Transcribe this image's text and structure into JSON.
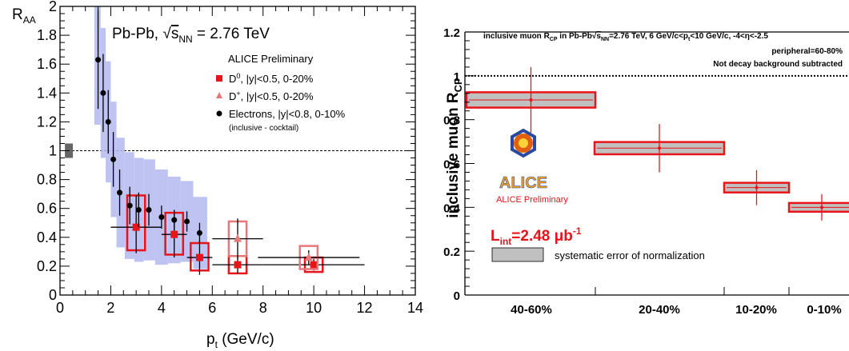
{
  "chart_data": [
    {
      "type": "scatter",
      "title": "",
      "xlabel": "p",
      "xlabel_sub": "t",
      "xlabel_unit": " (GeV/c)",
      "ylabel": "R",
      "ylabel_sub": "AA",
      "xlim": [
        0,
        14
      ],
      "ylim": [
        0,
        2
      ],
      "xticks": [
        "0",
        "2",
        "4",
        "6",
        "8",
        "10",
        "12",
        "14"
      ],
      "yticks": [
        "0",
        "0.2",
        "0.4",
        "0.6",
        "0.8",
        "1",
        "1.2",
        "1.4",
        "1.6",
        "1.8",
        "2"
      ],
      "reference_line": 1,
      "normalization_box": {
        "x": 0.35,
        "y": 1.0,
        "half_height": 0.05,
        "color": "#666666"
      },
      "system_label_prefix": "Pb-Pb, ",
      "system_label_sqrt": "√",
      "system_label_s": "s",
      "system_label_sub": "NN",
      "system_label_suffix": " = 2.76 TeV",
      "preliminary_label": "ALICE Preliminary",
      "legend_placement": "top-right",
      "series": [
        {
          "name": "D",
          "name_sup": "0",
          "name_suffix": ", |y|<0.5, 0-20%",
          "marker": "square",
          "color": "#e8141a",
          "points": [
            {
              "x": 3.0,
              "y": 0.47,
              "xerr": 1.0,
              "yerr_lo": 0.18,
              "yerr_hi": 0.22,
              "sys_lo": 0.16,
              "sys_hi": 0.22
            },
            {
              "x": 4.5,
              "y": 0.42,
              "xerr": 0.5,
              "yerr_lo": 0.16,
              "yerr_hi": 0.16,
              "sys_lo": 0.14,
              "sys_hi": 0.15
            },
            {
              "x": 5.5,
              "y": 0.26,
              "xerr": 0.5,
              "yerr_lo": 0.12,
              "yerr_hi": 0.12,
              "sys_lo": 0.09,
              "sys_hi": 0.1
            },
            {
              "x": 7.0,
              "y": 0.21,
              "xerr": 1.0,
              "yerr_lo": 0.06,
              "yerr_hi": 0.06,
              "sys_lo": 0.06,
              "sys_hi": 0.06
            },
            {
              "x": 10.0,
              "y": 0.21,
              "xerr": 2.0,
              "yerr_lo": 0.04,
              "yerr_hi": 0.04,
              "sys_lo": 0.05,
              "sys_hi": 0.05
            }
          ]
        },
        {
          "name": "D",
          "name_sup": "+",
          "name_suffix": ", |y|<0.5, 0-20%",
          "marker": "triangle",
          "color": "#e6787a",
          "points": [
            {
              "x": 7.0,
              "y": 0.39,
              "xerr": 1.0,
              "yerr_lo": 0.14,
              "yerr_hi": 0.14,
              "sys_lo": 0.12,
              "sys_hi": 0.12
            },
            {
              "x": 9.8,
              "y": 0.26,
              "xerr": 2.0,
              "yerr_lo": 0.05,
              "yerr_hi": 0.05,
              "sys_lo": 0.08,
              "sys_hi": 0.08
            }
          ]
        },
        {
          "name": "Electrons, |y|<0.8, 0-10%",
          "note": "(inclusive - cocktail)",
          "marker": "circle",
          "color": "#000000",
          "band_color": "#b3b8f0",
          "points": [
            {
              "x": 1.5,
              "y": 1.63,
              "yerr": 0.34,
              "sys": 0.45
            },
            {
              "x": 1.7,
              "y": 1.4,
              "yerr": 0.27,
              "sys": 0.45
            },
            {
              "x": 1.9,
              "y": 1.2,
              "yerr": 0.22,
              "sys": 0.42
            },
            {
              "x": 2.1,
              "y": 0.94,
              "yerr": 0.19,
              "sys": 0.4
            },
            {
              "x": 2.35,
              "y": 0.71,
              "yerr": 0.16,
              "sys": 0.38
            },
            {
              "x": 2.75,
              "y": 0.62,
              "yerr": 0.13,
              "sys": 0.37
            },
            {
              "x": 3.1,
              "y": 0.59,
              "yerr": 0.12,
              "sys": 0.36
            },
            {
              "x": 3.5,
              "y": 0.59,
              "yerr": 0.11,
              "sys": 0.35
            },
            {
              "x": 4.0,
              "y": 0.54,
              "yerr": 0.08,
              "sys": 0.33
            },
            {
              "x": 4.5,
              "y": 0.52,
              "yerr": 0.07,
              "sys": 0.3
            },
            {
              "x": 5.0,
              "y": 0.51,
              "yerr": 0.07,
              "sys": 0.28
            },
            {
              "x": 5.5,
              "y": 0.43,
              "yerr": 0.07,
              "sys": 0.25
            }
          ]
        }
      ]
    },
    {
      "type": "bar",
      "title": "",
      "ylabel": "inclusive muon R",
      "ylabel_sub": "CP",
      "ylim": [
        0,
        1.2
      ],
      "yticks": [
        "0",
        "0.2",
        "0.4",
        "0.6",
        "0.8",
        "1",
        "1.2"
      ],
      "reference_line": 1,
      "categories": [
        "40-60%",
        "20-40%",
        "10-20%",
        "0-10%"
      ],
      "values": [
        0.89,
        0.67,
        0.49,
        0.4
      ],
      "stat_err": [
        0.15,
        0.11,
        0.08,
        0.06
      ],
      "sys_err": [
        0.035,
        0.028,
        0.022,
        0.02
      ],
      "box_color": "#c0c0c0",
      "edge_color": "#e8141a",
      "annotation_line1_a": "inclusive muon R",
      "annotation_line1_sub": "CP",
      "annotation_line1_b": " in Pb-Pb",
      "annotation_line1_sqrt": "√",
      "annotation_line1_s": "s",
      "annotation_line1_sub2": "NN",
      "annotation_line1_c": "=2.76 TeV, 6 GeV/c<p",
      "annotation_line1_sub3": "t",
      "annotation_line1_d": "<10 GeV/c, -4<η<-2.5",
      "annotation_line2": "peripheral=60-80%",
      "annotation_line3": "Not decay background subtracted",
      "luminosity_a": "L",
      "luminosity_sub": "int",
      "luminosity_b": "=2.48 μb",
      "luminosity_sup": "-1",
      "norm_legend": "systematic error of normalization",
      "logo_text": "ALICE",
      "logo_caption": "ALICE Preliminary"
    }
  ]
}
